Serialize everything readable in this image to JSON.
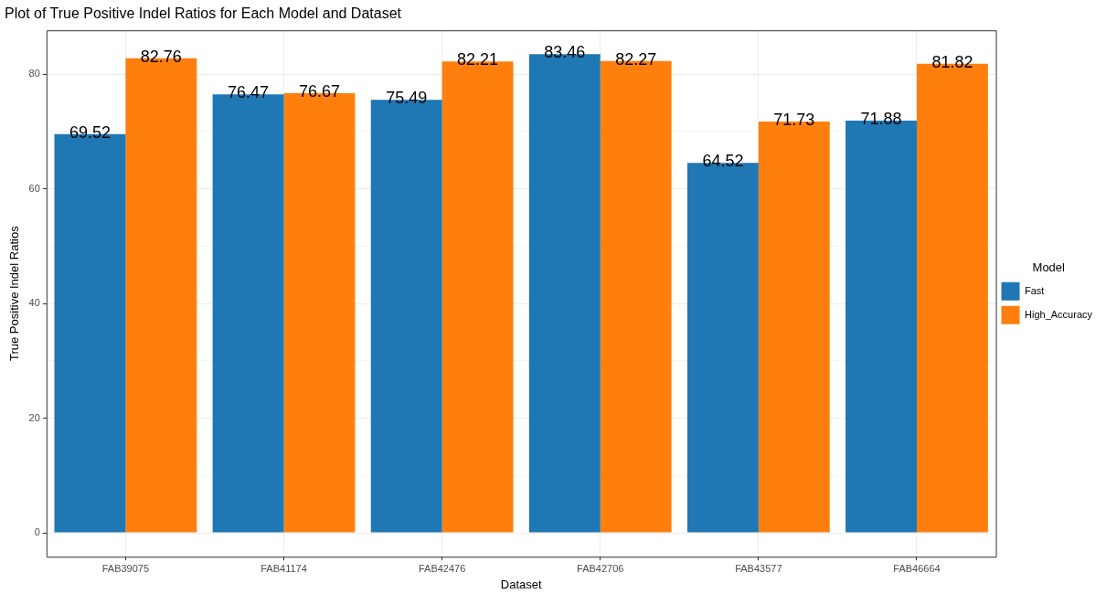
{
  "chart_data": {
    "type": "bar",
    "title": "Plot of True Positive Indel Ratios for Each Model and Dataset",
    "xlabel": "Dataset",
    "ylabel": "True Positive Indel Ratios",
    "legend_title": "Model",
    "categories": [
      "FAB39075",
      "FAB41174",
      "FAB42476",
      "FAB42706",
      "FAB43577",
      "FAB46664"
    ],
    "series": [
      {
        "name": "Fast",
        "color": "#1f77b4",
        "values": [
          69.52,
          76.47,
          75.49,
          83.46,
          64.52,
          71.88
        ]
      },
      {
        "name": "High_Accuracy",
        "color": "#ff7f0e",
        "values": [
          82.76,
          76.67,
          82.21,
          82.27,
          71.73,
          81.82
        ]
      }
    ],
    "ylim": [
      -4.17,
      87.63
    ],
    "yticks": [
      0,
      {
        "value": 10,
        "label": null
      },
      20,
      {
        "value": 30,
        "label": null
      },
      40,
      {
        "value": 50,
        "label": null
      },
      60,
      {
        "value": 70,
        "label": null
      },
      80
    ],
    "grid": true,
    "legend": "right",
    "data_labels": true
  }
}
